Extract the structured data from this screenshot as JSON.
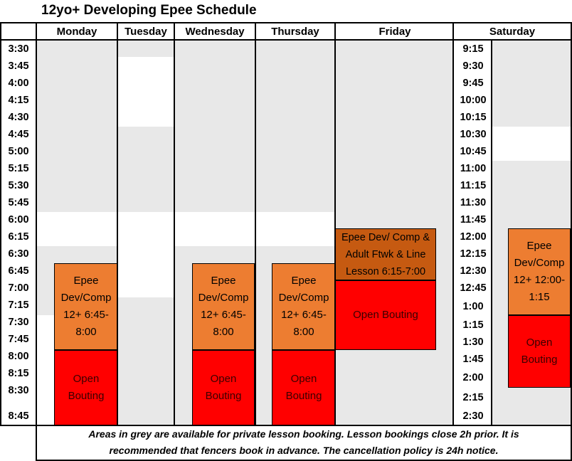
{
  "title": "12yo+ Developing Epee Schedule",
  "days": [
    "Monday",
    "Tuesday",
    "Wednesday",
    "Thursday",
    "Friday",
    "Saturday"
  ],
  "weekday_times": [
    "3:30",
    "3:45",
    "4:00",
    "4:15",
    "4:30",
    "4:45",
    "5:00",
    "5:15",
    "5:30",
    "5:45",
    "6:00",
    "6:15",
    "6:30",
    "6:45",
    "7:00",
    "7:15",
    "7:30",
    "7:45",
    "8:00",
    "8:15",
    "8:30",
    "8:45"
  ],
  "saturday_times": [
    "9:15",
    "9:30",
    "9:45",
    "10:00",
    "10:15",
    "10:30",
    "10:45",
    "11:00",
    "11:15",
    "11:30",
    "11:45",
    "12:00",
    "12:15",
    "12:30",
    "12:45",
    "1:00",
    "1:15",
    "1:30",
    "1:45",
    "2:00",
    "2:15",
    "2:30"
  ],
  "events": {
    "monday_class": "Epee\nDev/Comp\n12+ 6:45-\n8:00",
    "monday_open": "Open\nBouting",
    "wednesday_class": "Epee\nDev/Comp\n12+ 6:45-\n8:00",
    "wednesday_open": "Open\nBouting",
    "thursday_class": "Epee\nDev/Comp\n12+ 6:45-\n8:00",
    "thursday_open": "Open\nBouting",
    "friday_lesson": "Epee Dev/ Comp &\nAdult Ftwk & Line\nLesson 6:15-7:00",
    "friday_open": "Open Bouting",
    "saturday_class": "Epee\nDev/Comp\n12+ 12:00-\n1:15",
    "saturday_open": "Open\nBouting"
  },
  "colors": {
    "grey": "#e8e8e8",
    "orange": "#ed7d31",
    "red": "#ff0000",
    "brown": "#c65a11"
  },
  "footer_note": "Areas in grey are available for private lesson booking. Lesson bookings close 2h prior. It is recommended that fencers book in advance. The cancellation policy is 24h notice."
}
